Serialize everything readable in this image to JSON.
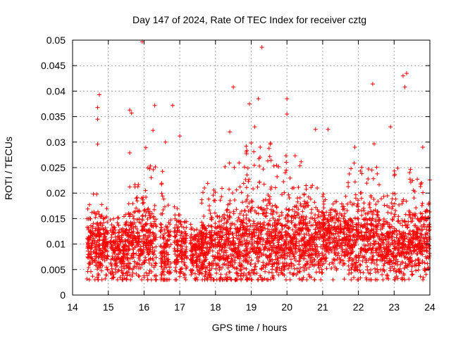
{
  "chart_data": {
    "type": "scatter",
    "title": "Day 147 of 2024, Rate Of TEC Index for receiver cztg",
    "xlabel": "GPS time / hours",
    "ylabel": "ROTI / TECUs",
    "xlim": [
      14,
      24
    ],
    "ylim": [
      0,
      0.05
    ],
    "grid": true,
    "marker": "plus",
    "color": "#ff0000",
    "x_ticks": [
      "14",
      "15",
      "16",
      "17",
      "18",
      "19",
      "20",
      "21",
      "22",
      "23",
      "24"
    ],
    "y_ticks": [
      "0",
      "0.005",
      "0.01",
      "0.015",
      "0.02",
      "0.025",
      "0.03",
      "0.035",
      "0.04",
      "0.045",
      "0.05"
    ],
    "notable_points": [
      {
        "x": 15.95,
        "y": 0.0497
      },
      {
        "x": 19.3,
        "y": 0.0486
      },
      {
        "x": 23.35,
        "y": 0.0435
      },
      {
        "x": 23.25,
        "y": 0.043
      },
      {
        "x": 22.4,
        "y": 0.0414
      },
      {
        "x": 18.5,
        "y": 0.0408
      },
      {
        "x": 23.3,
        "y": 0.0408
      },
      {
        "x": 14.75,
        "y": 0.0393
      },
      {
        "x": 19.2,
        "y": 0.0385
      },
      {
        "x": 20.0,
        "y": 0.0385
      },
      {
        "x": 18.95,
        "y": 0.0375
      },
      {
        "x": 16.3,
        "y": 0.0372
      },
      {
        "x": 16.8,
        "y": 0.0372
      },
      {
        "x": 14.7,
        "y": 0.0368
      },
      {
        "x": 15.6,
        "y": 0.0363
      },
      {
        "x": 15.65,
        "y": 0.0357
      },
      {
        "x": 14.7,
        "y": 0.0345
      },
      {
        "x": 20.0,
        "y": 0.0355
      },
      {
        "x": 20.8,
        "y": 0.0325
      },
      {
        "x": 21.15,
        "y": 0.0325
      },
      {
        "x": 16.25,
        "y": 0.0323
      },
      {
        "x": 17.0,
        "y": 0.0312
      },
      {
        "x": 14.7,
        "y": 0.0296
      },
      {
        "x": 15.6,
        "y": 0.0279
      },
      {
        "x": 16.05,
        "y": 0.0289
      },
      {
        "x": 16.6,
        "y": 0.03
      },
      {
        "x": 22.9,
        "y": 0.033
      },
      {
        "x": 21.9,
        "y": 0.029
      },
      {
        "x": 23.8,
        "y": 0.029
      },
      {
        "x": 19.1,
        "y": 0.033
      },
      {
        "x": 18.4,
        "y": 0.032
      }
    ],
    "clusters": [
      {
        "x_range": [
          14.4,
          15.0
        ],
        "center": 0.009,
        "spread": 0.003,
        "high": 0.021
      },
      {
        "x_range": [
          15.05,
          15.55
        ],
        "center": 0.0085,
        "spread": 0.003,
        "high": 0.016
      },
      {
        "x_range": [
          15.55,
          16.0
        ],
        "center": 0.01,
        "spread": 0.0035,
        "high": 0.022
      },
      {
        "x_range": [
          16.0,
          16.35
        ],
        "center": 0.01,
        "spread": 0.004,
        "high": 0.026
      },
      {
        "x_range": [
          16.45,
          16.75
        ],
        "center": 0.009,
        "spread": 0.0035,
        "high": 0.025
      },
      {
        "x_range": [
          16.85,
          17.2
        ],
        "center": 0.0085,
        "spread": 0.003,
        "high": 0.018
      },
      {
        "x_range": [
          17.3,
          17.65
        ],
        "center": 0.008,
        "spread": 0.0025,
        "high": 0.014
      },
      {
        "x_range": [
          17.6,
          18.2
        ],
        "center": 0.009,
        "spread": 0.0035,
        "high": 0.022
      },
      {
        "x_range": [
          18.2,
          18.9
        ],
        "center": 0.0095,
        "spread": 0.004,
        "high": 0.027
      },
      {
        "x_range": [
          18.85,
          19.6
        ],
        "center": 0.01,
        "spread": 0.0045,
        "high": 0.03
      },
      {
        "x_range": [
          19.6,
          20.4
        ],
        "center": 0.0105,
        "spread": 0.004,
        "high": 0.028
      },
      {
        "x_range": [
          20.4,
          21.0
        ],
        "center": 0.0105,
        "spread": 0.0035,
        "high": 0.022
      },
      {
        "x_range": [
          21.0,
          21.7
        ],
        "center": 0.011,
        "spread": 0.003,
        "high": 0.02
      },
      {
        "x_range": [
          21.7,
          22.3
        ],
        "center": 0.0105,
        "spread": 0.0035,
        "high": 0.026
      },
      {
        "x_range": [
          22.3,
          22.6
        ],
        "center": 0.011,
        "spread": 0.0045,
        "high": 0.032
      },
      {
        "x_range": [
          22.6,
          23.0
        ],
        "center": 0.0095,
        "spread": 0.003,
        "high": 0.02
      },
      {
        "x_range": [
          23.0,
          23.5
        ],
        "center": 0.009,
        "spread": 0.0035,
        "high": 0.025
      },
      {
        "x_range": [
          23.5,
          24.0
        ],
        "center": 0.0105,
        "spread": 0.0035,
        "high": 0.024
      }
    ]
  }
}
